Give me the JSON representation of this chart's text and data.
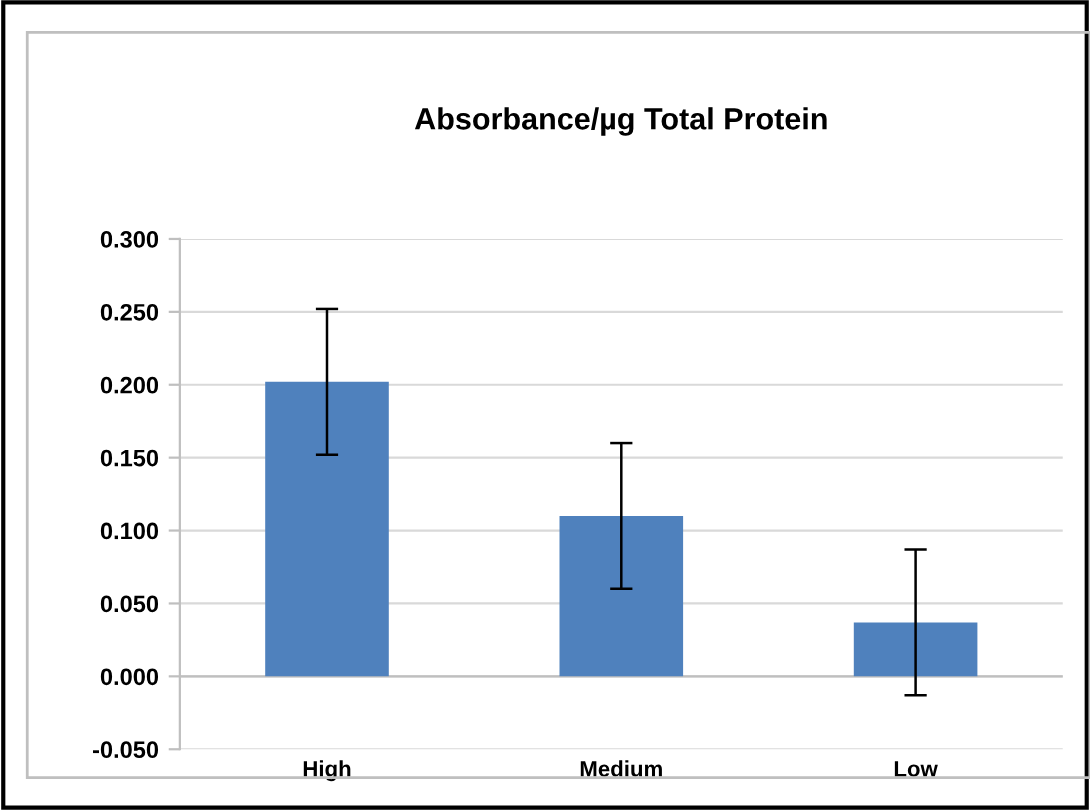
{
  "chart_data": {
    "type": "bar",
    "title": "Absorbance/µg Total Protein",
    "categories": [
      "High",
      "Medium",
      "Low"
    ],
    "values": [
      0.202,
      0.11,
      0.037
    ],
    "errors": [
      0.05,
      0.05,
      0.05
    ],
    "color": "#4f81bd",
    "ylim": [
      -0.05,
      0.3
    ],
    "yticks": [
      {
        "value": -0.05,
        "label": "-0.050"
      },
      {
        "value": 0,
        "label": "0.000"
      },
      {
        "value": 0.05,
        "label": "0.050"
      },
      {
        "value": 0.1,
        "label": "0.100"
      },
      {
        "value": 0.15,
        "label": "0.150"
      },
      {
        "value": 0.2,
        "label": "0.200"
      },
      {
        "value": 0.25,
        "label": "0.250"
      },
      {
        "value": 0.3,
        "label": "0.300"
      }
    ],
    "grid": "y",
    "legend": false
  }
}
